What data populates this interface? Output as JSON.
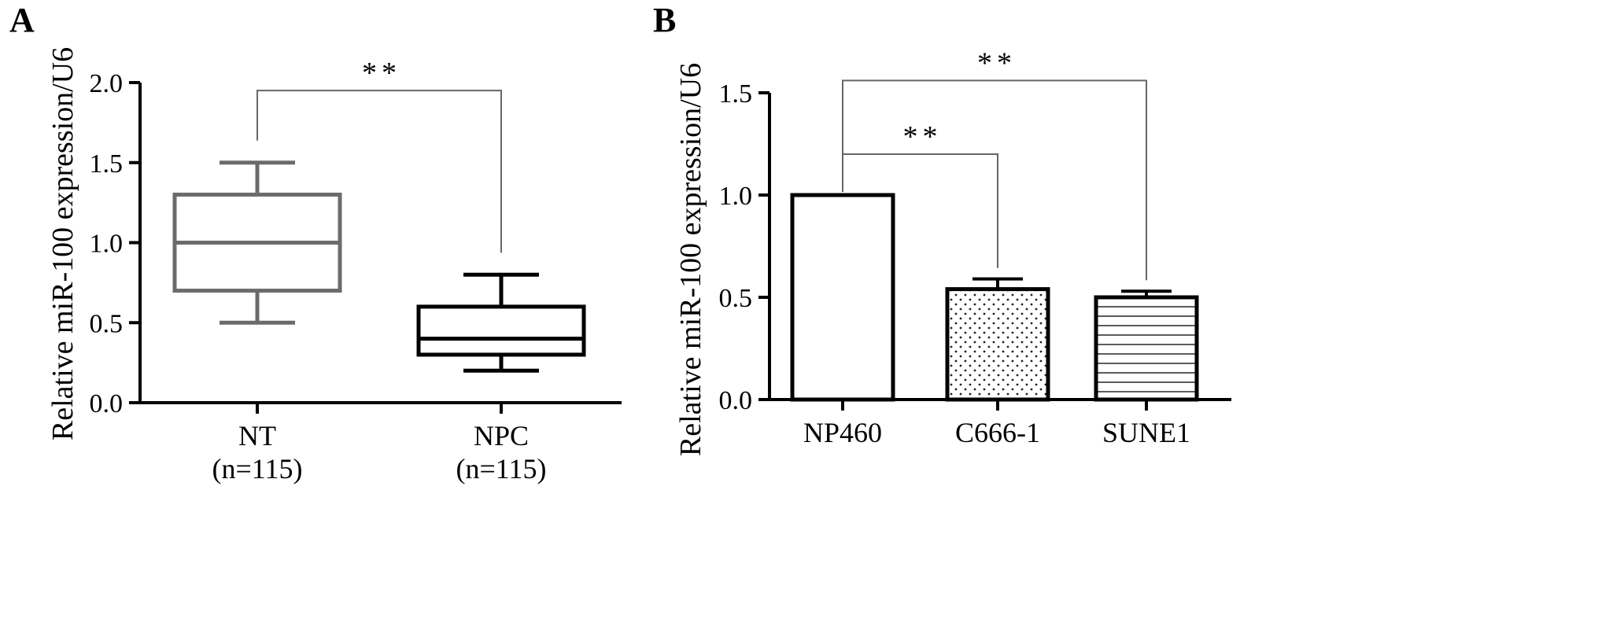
{
  "chart_data": [
    {
      "type": "box",
      "panel_label": "A",
      "ylabel": "Relative miR-100 expression/U6",
      "ylim": [
        0,
        2.0
      ],
      "yticks": [
        "0.0",
        "0.5",
        "1.0",
        "1.5",
        "2.0"
      ],
      "ytick_values": [
        0,
        0.5,
        1.0,
        1.5,
        2.0
      ],
      "categories": [
        {
          "name": "NT",
          "sub": "(n=115)"
        },
        {
          "name": "NPC",
          "sub": "(n=115)"
        }
      ],
      "boxes": [
        {
          "min": 0.5,
          "q1": 0.7,
          "median": 1.0,
          "q3": 1.3,
          "max": 1.5,
          "color": "#6b6b6b"
        },
        {
          "min": 0.2,
          "q1": 0.3,
          "median": 0.4,
          "q3": 0.6,
          "max": 0.8,
          "color": "#000000"
        }
      ],
      "significance": [
        {
          "from": 0,
          "to": 1,
          "label": "**",
          "y": 1.95
        }
      ]
    },
    {
      "type": "bar",
      "panel_label": "B",
      "ylabel": "Relative miR-100 expression/U6",
      "ylim": [
        0,
        1.5
      ],
      "yticks": [
        "0.0",
        "0.5",
        "1.0",
        "1.5"
      ],
      "ytick_values": [
        0,
        0.5,
        1.0,
        1.5
      ],
      "categories": [
        "NP460",
        "C666-1",
        "SUNE1"
      ],
      "values": [
        1.0,
        0.54,
        0.5
      ],
      "errors": [
        0,
        0.05,
        0.03
      ],
      "patterns": [
        "none",
        "dots",
        "hlines"
      ],
      "significance": [
        {
          "from": 0,
          "to": 1,
          "label": "**",
          "y": 1.2
        },
        {
          "from": 0,
          "to": 2,
          "label": "**",
          "y": 1.56
        }
      ]
    }
  ]
}
